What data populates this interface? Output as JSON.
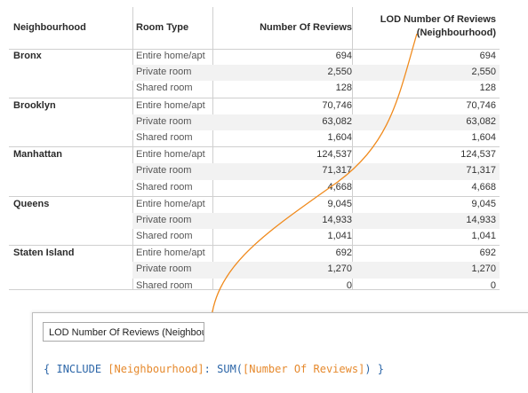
{
  "columns": {
    "neighbourhood": "Neighbourhood",
    "room_type": "Room Type",
    "number_of_reviews": "Number Of Reviews",
    "lod_line1": "LOD Number Of Reviews",
    "lod_line2": "(Neighbourhood)"
  },
  "groups": [
    {
      "neighbourhood": "Bronx",
      "rows": [
        {
          "room_type": "Entire home/apt",
          "reviews": "694",
          "lod": "694"
        },
        {
          "room_type": "Private room",
          "reviews": "2,550",
          "lod": "2,550"
        },
        {
          "room_type": "Shared room",
          "reviews": "128",
          "lod": "128"
        }
      ]
    },
    {
      "neighbourhood": "Brooklyn",
      "rows": [
        {
          "room_type": "Entire home/apt",
          "reviews": "70,746",
          "lod": "70,746"
        },
        {
          "room_type": "Private room",
          "reviews": "63,082",
          "lod": "63,082"
        },
        {
          "room_type": "Shared room",
          "reviews": "1,604",
          "lod": "1,604"
        }
      ]
    },
    {
      "neighbourhood": "Manhattan",
      "rows": [
        {
          "room_type": "Entire home/apt",
          "reviews": "124,537",
          "lod": "124,537"
        },
        {
          "room_type": "Private room",
          "reviews": "71,317",
          "lod": "71,317"
        },
        {
          "room_type": "Shared room",
          "reviews": "4,668",
          "lod": "4,668"
        }
      ]
    },
    {
      "neighbourhood": "Queens",
      "rows": [
        {
          "room_type": "Entire home/apt",
          "reviews": "9,045",
          "lod": "9,045"
        },
        {
          "room_type": "Private room",
          "reviews": "14,933",
          "lod": "14,933"
        },
        {
          "room_type": "Shared room",
          "reviews": "1,041",
          "lod": "1,041"
        }
      ]
    },
    {
      "neighbourhood": "Staten Island",
      "rows": [
        {
          "room_type": "Entire home/apt",
          "reviews": "692",
          "lod": "692"
        },
        {
          "room_type": "Private room",
          "reviews": "1,270",
          "lod": "1,270"
        },
        {
          "room_type": "Shared room",
          "reviews": "0",
          "lod": "0"
        }
      ]
    }
  ],
  "calc_editor": {
    "name_value": "LOD Number Of Reviews (Neighbou",
    "formula": {
      "open_brace": "{",
      "keyword_include": "INCLUDE",
      "dimension": "[Neighbourhood]",
      "colon": ":",
      "func_sum": "SUM(",
      "measure": "[Number Of Reviews]",
      "close_paren": ")",
      "close_brace": "}"
    }
  },
  "colors": {
    "keyword": "#2c66a8",
    "field": "#e68a2e",
    "annotation_line": "#f08a1c"
  }
}
